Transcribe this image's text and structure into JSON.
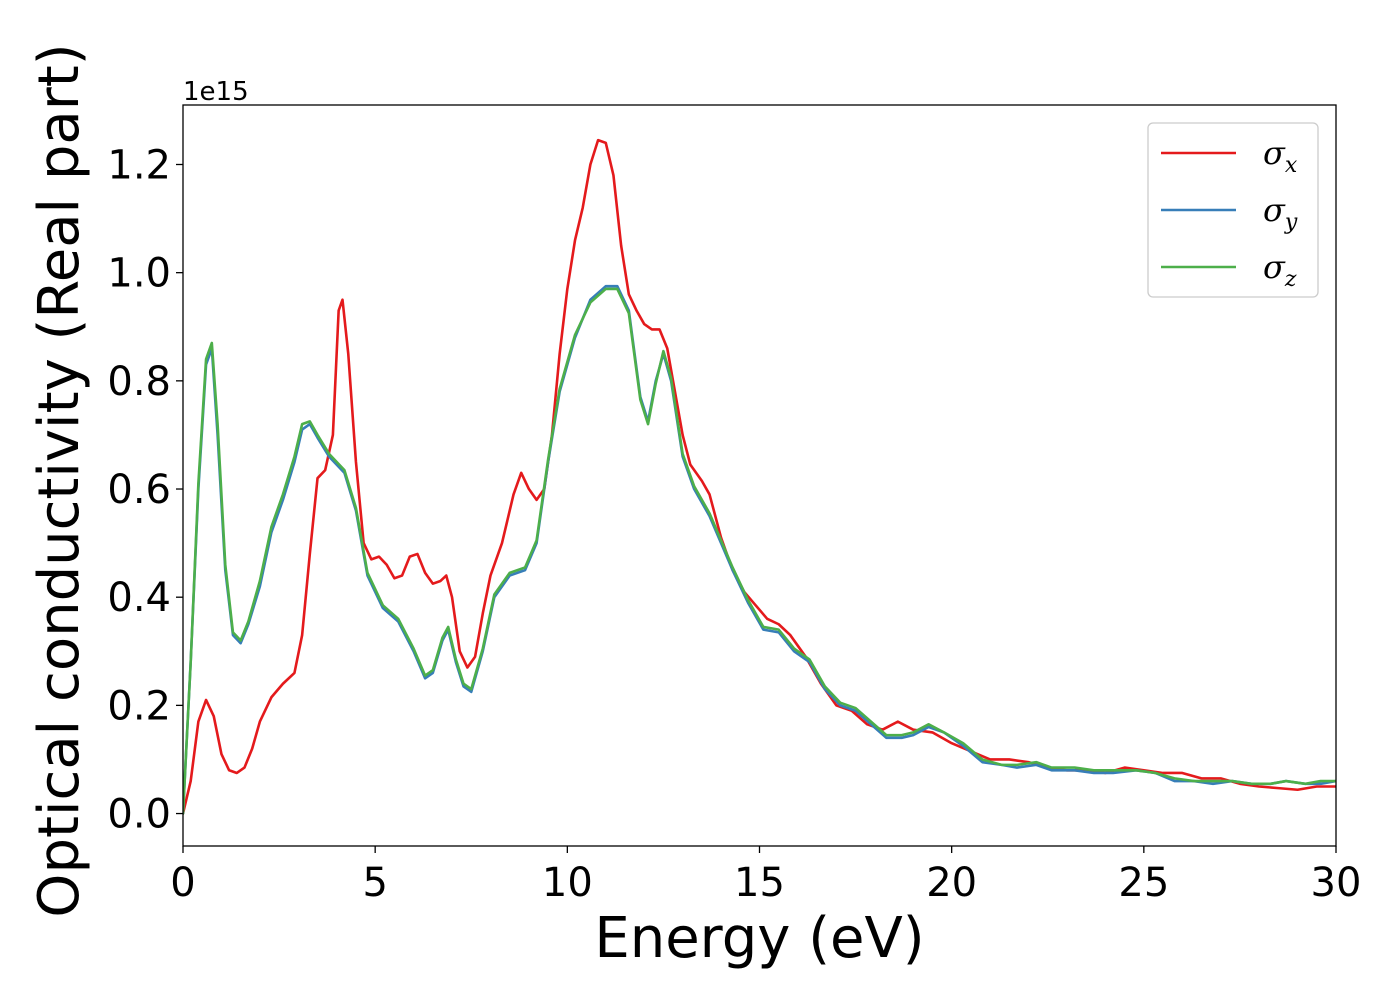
{
  "chart_data": {
    "type": "line",
    "xlabel": "Energy (eV)",
    "ylabel": "Optical conductivity (Real part)",
    "offset_text": "1e15",
    "xlim": [
      0,
      30
    ],
    "ylim": [
      -0.06,
      1.31
    ],
    "x_ticks": [
      0,
      5,
      10,
      15,
      20,
      25,
      30
    ],
    "x_tick_labels": [
      "0",
      "5",
      "10",
      "15",
      "20",
      "25",
      "30"
    ],
    "y_ticks": [
      0.0,
      0.2,
      0.4,
      0.6,
      0.8,
      1.0,
      1.2
    ],
    "y_tick_labels": [
      "0.0",
      "0.2",
      "0.4",
      "0.6",
      "0.8",
      "1.0",
      "1.2"
    ],
    "grid": false,
    "legend_position": "top-right",
    "series": [
      {
        "name": "σx",
        "symbol": "σ",
        "subscript": "x",
        "color": "#e41a1c",
        "points": [
          [
            0,
            0
          ],
          [
            0.2,
            0.06
          ],
          [
            0.4,
            0.17
          ],
          [
            0.6,
            0.21
          ],
          [
            0.8,
            0.18
          ],
          [
            1.0,
            0.11
          ],
          [
            1.2,
            0.08
          ],
          [
            1.4,
            0.075
          ],
          [
            1.6,
            0.085
          ],
          [
            1.8,
            0.12
          ],
          [
            2.0,
            0.17
          ],
          [
            2.3,
            0.215
          ],
          [
            2.6,
            0.24
          ],
          [
            2.9,
            0.26
          ],
          [
            3.1,
            0.33
          ],
          [
            3.3,
            0.48
          ],
          [
            3.5,
            0.62
          ],
          [
            3.7,
            0.635
          ],
          [
            3.9,
            0.7
          ],
          [
            4.05,
            0.93
          ],
          [
            4.15,
            0.95
          ],
          [
            4.3,
            0.85
          ],
          [
            4.5,
            0.65
          ],
          [
            4.7,
            0.5
          ],
          [
            4.9,
            0.47
          ],
          [
            5.1,
            0.475
          ],
          [
            5.3,
            0.46
          ],
          [
            5.5,
            0.435
          ],
          [
            5.7,
            0.44
          ],
          [
            5.9,
            0.475
          ],
          [
            6.1,
            0.48
          ],
          [
            6.3,
            0.445
          ],
          [
            6.5,
            0.425
          ],
          [
            6.7,
            0.43
          ],
          [
            6.85,
            0.44
          ],
          [
            7.0,
            0.4
          ],
          [
            7.2,
            0.3
          ],
          [
            7.4,
            0.27
          ],
          [
            7.6,
            0.29
          ],
          [
            7.8,
            0.37
          ],
          [
            8.0,
            0.44
          ],
          [
            8.3,
            0.5
          ],
          [
            8.6,
            0.59
          ],
          [
            8.8,
            0.63
          ],
          [
            9.0,
            0.6
          ],
          [
            9.2,
            0.58
          ],
          [
            9.4,
            0.6
          ],
          [
            9.6,
            0.7
          ],
          [
            9.8,
            0.85
          ],
          [
            10.0,
            0.97
          ],
          [
            10.2,
            1.06
          ],
          [
            10.4,
            1.12
          ],
          [
            10.6,
            1.2
          ],
          [
            10.8,
            1.245
          ],
          [
            11.0,
            1.24
          ],
          [
            11.2,
            1.18
          ],
          [
            11.4,
            1.05
          ],
          [
            11.6,
            0.96
          ],
          [
            11.8,
            0.93
          ],
          [
            12.0,
            0.905
          ],
          [
            12.2,
            0.895
          ],
          [
            12.4,
            0.895
          ],
          [
            12.6,
            0.86
          ],
          [
            12.8,
            0.78
          ],
          [
            13.0,
            0.7
          ],
          [
            13.2,
            0.645
          ],
          [
            13.5,
            0.615
          ],
          [
            13.7,
            0.59
          ],
          [
            14.0,
            0.51
          ],
          [
            14.3,
            0.45
          ],
          [
            14.6,
            0.41
          ],
          [
            14.9,
            0.385
          ],
          [
            15.2,
            0.36
          ],
          [
            15.5,
            0.35
          ],
          [
            15.8,
            0.33
          ],
          [
            16.2,
            0.29
          ],
          [
            16.6,
            0.24
          ],
          [
            17.0,
            0.2
          ],
          [
            17.4,
            0.19
          ],
          [
            17.8,
            0.165
          ],
          [
            18.2,
            0.155
          ],
          [
            18.6,
            0.17
          ],
          [
            19.0,
            0.155
          ],
          [
            19.5,
            0.15
          ],
          [
            20.0,
            0.13
          ],
          [
            20.5,
            0.115
          ],
          [
            21.0,
            0.1
          ],
          [
            21.5,
            0.1
          ],
          [
            22.0,
            0.095
          ],
          [
            22.5,
            0.085
          ],
          [
            23.0,
            0.08
          ],
          [
            23.5,
            0.08
          ],
          [
            24.0,
            0.075
          ],
          [
            24.5,
            0.085
          ],
          [
            25.0,
            0.08
          ],
          [
            25.5,
            0.075
          ],
          [
            26.0,
            0.075
          ],
          [
            26.5,
            0.065
          ],
          [
            27.0,
            0.065
          ],
          [
            27.5,
            0.055
          ],
          [
            28.0,
            0.05
          ],
          [
            28.5,
            0.047
          ],
          [
            29.0,
            0.044
          ],
          [
            29.5,
            0.05
          ],
          [
            30.0,
            0.05
          ]
        ]
      },
      {
        "name": "σy",
        "symbol": "σ",
        "subscript": "y",
        "color": "#377eb8",
        "points": [
          [
            0,
            0
          ],
          [
            0.2,
            0.28
          ],
          [
            0.4,
            0.6
          ],
          [
            0.6,
            0.83
          ],
          [
            0.75,
            0.86
          ],
          [
            0.9,
            0.7
          ],
          [
            1.1,
            0.45
          ],
          [
            1.3,
            0.33
          ],
          [
            1.5,
            0.315
          ],
          [
            1.7,
            0.35
          ],
          [
            2.0,
            0.42
          ],
          [
            2.3,
            0.52
          ],
          [
            2.6,
            0.58
          ],
          [
            2.9,
            0.65
          ],
          [
            3.1,
            0.71
          ],
          [
            3.3,
            0.72
          ],
          [
            3.5,
            0.695
          ],
          [
            3.8,
            0.66
          ],
          [
            4.2,
            0.63
          ],
          [
            4.5,
            0.56
          ],
          [
            4.8,
            0.44
          ],
          [
            5.2,
            0.38
          ],
          [
            5.6,
            0.355
          ],
          [
            6.0,
            0.3
          ],
          [
            6.3,
            0.25
          ],
          [
            6.5,
            0.26
          ],
          [
            6.75,
            0.32
          ],
          [
            6.9,
            0.34
          ],
          [
            7.1,
            0.28
          ],
          [
            7.3,
            0.235
          ],
          [
            7.5,
            0.225
          ],
          [
            7.8,
            0.3
          ],
          [
            8.1,
            0.4
          ],
          [
            8.5,
            0.44
          ],
          [
            8.9,
            0.45
          ],
          [
            9.2,
            0.5
          ],
          [
            9.5,
            0.65
          ],
          [
            9.8,
            0.78
          ],
          [
            10.2,
            0.88
          ],
          [
            10.6,
            0.95
          ],
          [
            11.0,
            0.975
          ],
          [
            11.3,
            0.975
          ],
          [
            11.6,
            0.93
          ],
          [
            11.9,
            0.77
          ],
          [
            12.1,
            0.725
          ],
          [
            12.3,
            0.8
          ],
          [
            12.5,
            0.85
          ],
          [
            12.7,
            0.8
          ],
          [
            13.0,
            0.66
          ],
          [
            13.3,
            0.6
          ],
          [
            13.7,
            0.55
          ],
          [
            14.0,
            0.5
          ],
          [
            14.3,
            0.45
          ],
          [
            14.7,
            0.39
          ],
          [
            15.1,
            0.34
          ],
          [
            15.5,
            0.335
          ],
          [
            15.9,
            0.3
          ],
          [
            16.3,
            0.28
          ],
          [
            16.7,
            0.23
          ],
          [
            17.1,
            0.2
          ],
          [
            17.5,
            0.19
          ],
          [
            17.9,
            0.165
          ],
          [
            18.3,
            0.14
          ],
          [
            18.7,
            0.14
          ],
          [
            19.0,
            0.145
          ],
          [
            19.4,
            0.16
          ],
          [
            19.8,
            0.15
          ],
          [
            20.3,
            0.125
          ],
          [
            20.8,
            0.095
          ],
          [
            21.3,
            0.09
          ],
          [
            21.7,
            0.085
          ],
          [
            22.2,
            0.09
          ],
          [
            22.6,
            0.08
          ],
          [
            23.2,
            0.08
          ],
          [
            23.7,
            0.075
          ],
          [
            24.2,
            0.075
          ],
          [
            24.8,
            0.08
          ],
          [
            25.3,
            0.075
          ],
          [
            25.8,
            0.06
          ],
          [
            26.3,
            0.06
          ],
          [
            26.8,
            0.055
          ],
          [
            27.3,
            0.06
          ],
          [
            27.8,
            0.055
          ],
          [
            28.3,
            0.055
          ],
          [
            28.7,
            0.06
          ],
          [
            29.2,
            0.055
          ],
          [
            29.6,
            0.055
          ],
          [
            30.0,
            0.06
          ]
        ]
      },
      {
        "name": "σz",
        "symbol": "σ",
        "subscript": "z",
        "color": "#4daf4a",
        "points": [
          [
            0,
            0
          ],
          [
            0.2,
            0.28
          ],
          [
            0.4,
            0.61
          ],
          [
            0.6,
            0.84
          ],
          [
            0.75,
            0.87
          ],
          [
            0.9,
            0.72
          ],
          [
            1.1,
            0.46
          ],
          [
            1.3,
            0.335
          ],
          [
            1.5,
            0.32
          ],
          [
            1.7,
            0.355
          ],
          [
            2.0,
            0.43
          ],
          [
            2.3,
            0.53
          ],
          [
            2.6,
            0.59
          ],
          [
            2.9,
            0.66
          ],
          [
            3.1,
            0.72
          ],
          [
            3.3,
            0.725
          ],
          [
            3.5,
            0.7
          ],
          [
            3.8,
            0.665
          ],
          [
            4.2,
            0.635
          ],
          [
            4.5,
            0.565
          ],
          [
            4.8,
            0.445
          ],
          [
            5.2,
            0.385
          ],
          [
            5.6,
            0.36
          ],
          [
            6.0,
            0.305
          ],
          [
            6.3,
            0.255
          ],
          [
            6.5,
            0.265
          ],
          [
            6.75,
            0.325
          ],
          [
            6.9,
            0.345
          ],
          [
            7.1,
            0.285
          ],
          [
            7.3,
            0.24
          ],
          [
            7.5,
            0.23
          ],
          [
            7.8,
            0.305
          ],
          [
            8.1,
            0.405
          ],
          [
            8.5,
            0.445
          ],
          [
            8.9,
            0.455
          ],
          [
            9.2,
            0.505
          ],
          [
            9.5,
            0.655
          ],
          [
            9.8,
            0.785
          ],
          [
            10.2,
            0.885
          ],
          [
            10.6,
            0.945
          ],
          [
            11.0,
            0.97
          ],
          [
            11.3,
            0.97
          ],
          [
            11.6,
            0.925
          ],
          [
            11.9,
            0.765
          ],
          [
            12.1,
            0.72
          ],
          [
            12.3,
            0.795
          ],
          [
            12.5,
            0.855
          ],
          [
            12.7,
            0.805
          ],
          [
            13.0,
            0.665
          ],
          [
            13.3,
            0.605
          ],
          [
            13.7,
            0.555
          ],
          [
            14.0,
            0.505
          ],
          [
            14.3,
            0.455
          ],
          [
            14.7,
            0.395
          ],
          [
            15.1,
            0.345
          ],
          [
            15.5,
            0.34
          ],
          [
            15.9,
            0.305
          ],
          [
            16.3,
            0.285
          ],
          [
            16.7,
            0.235
          ],
          [
            17.1,
            0.205
          ],
          [
            17.5,
            0.195
          ],
          [
            17.9,
            0.17
          ],
          [
            18.3,
            0.145
          ],
          [
            18.7,
            0.145
          ],
          [
            19.0,
            0.15
          ],
          [
            19.4,
            0.165
          ],
          [
            19.8,
            0.15
          ],
          [
            20.3,
            0.13
          ],
          [
            20.8,
            0.1
          ],
          [
            21.3,
            0.09
          ],
          [
            21.7,
            0.09
          ],
          [
            22.2,
            0.095
          ],
          [
            22.6,
            0.085
          ],
          [
            23.2,
            0.085
          ],
          [
            23.7,
            0.08
          ],
          [
            24.2,
            0.08
          ],
          [
            24.8,
            0.08
          ],
          [
            25.3,
            0.075
          ],
          [
            25.8,
            0.065
          ],
          [
            26.3,
            0.06
          ],
          [
            26.8,
            0.06
          ],
          [
            27.3,
            0.06
          ],
          [
            27.8,
            0.055
          ],
          [
            28.3,
            0.055
          ],
          [
            28.7,
            0.06
          ],
          [
            29.2,
            0.055
          ],
          [
            29.6,
            0.06
          ],
          [
            30.0,
            0.06
          ]
        ]
      }
    ]
  }
}
